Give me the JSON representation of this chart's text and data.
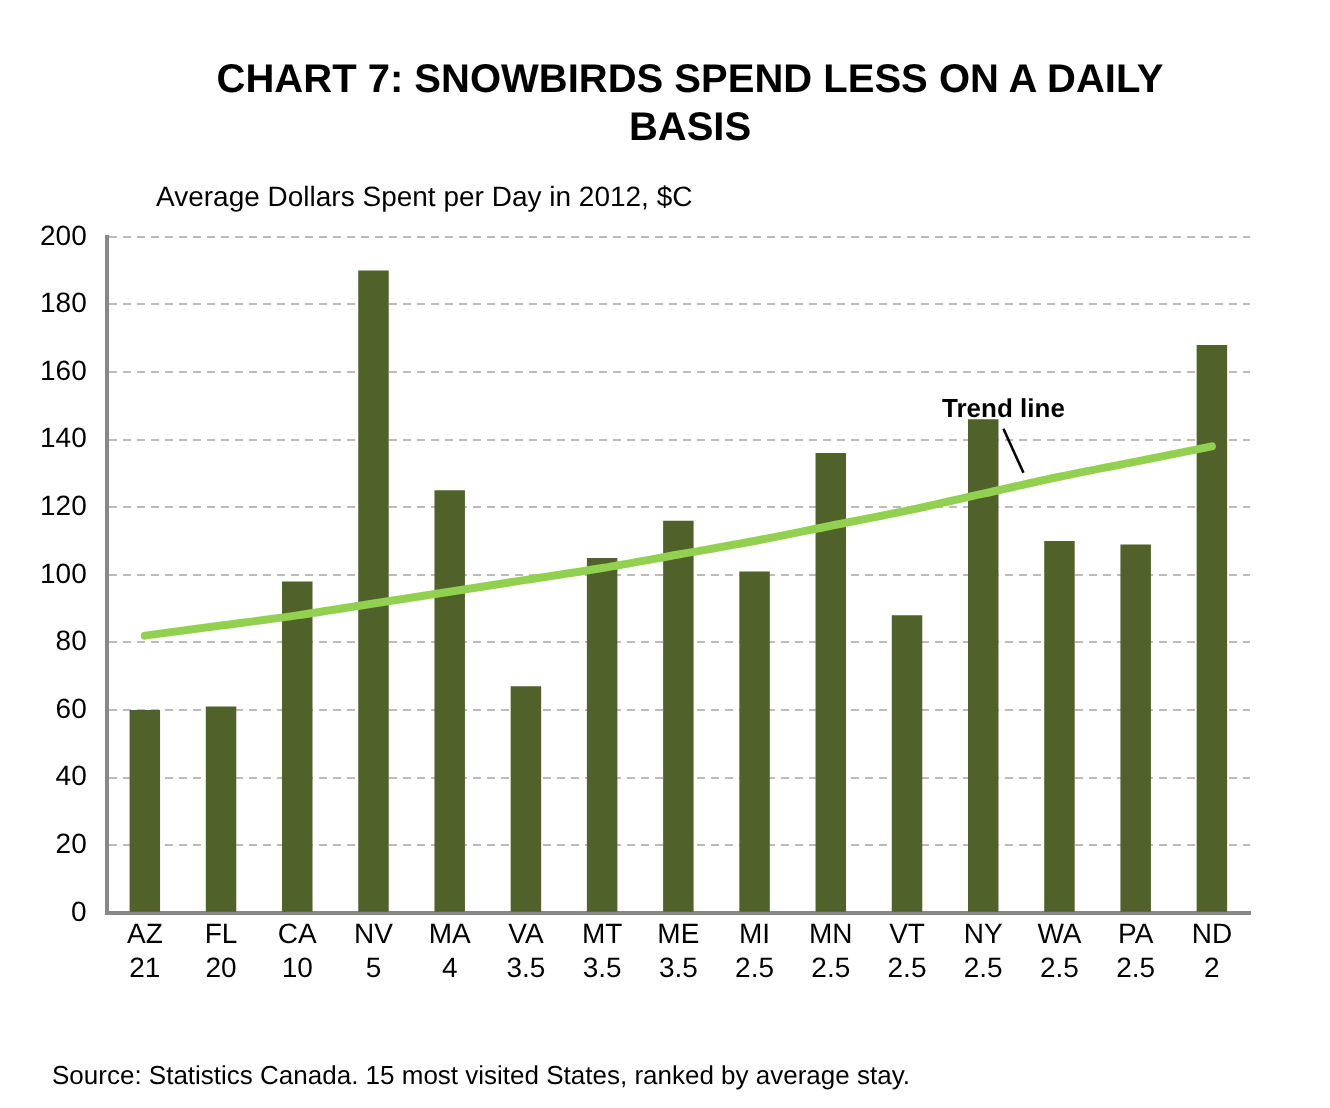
{
  "chart_data": {
    "type": "bar",
    "title": "CHART 7: SNOWBIRDS SPEND LESS ON A DAILY BASIS",
    "ylabel": "Average Dollars Spent per Day in 2012, $C",
    "categories": [
      "AZ\n21",
      "FL\n20",
      "CA\n10",
      "NV\n5",
      "MA\n4",
      "VA\n3.5",
      "MT\n3.5",
      "ME\n3.5",
      "MI\n2.5",
      "MN\n2.5",
      "VT\n2.5",
      "NY\n2.5",
      "WA\n2.5",
      "PA\n2.5",
      "ND\n2"
    ],
    "series": [
      {
        "color": "#50622a",
        "values": [
          60,
          61,
          98,
          190,
          125,
          67,
          105,
          116,
          101,
          136,
          88,
          146,
          110,
          109,
          168
        ]
      },
      {
        "type": "line",
        "color": "#92d050",
        "marker": "none",
        "x": [
          "AZ\n21",
          "FL\n20",
          "CA\n10",
          "NV\n5",
          "MA\n4",
          "VA\n3.5",
          "MT\n3.5",
          "ME\n3.5",
          "MI\n2.5",
          "MN\n2.5",
          "VT\n2.5",
          "NY\n2.5",
          "WA\n2.5",
          "PA\n2.5",
          "ND\n2"
        ],
        "values": [
          82,
          85,
          88,
          91.5,
          95,
          98.5,
          102,
          106,
          110,
          114.5,
          119,
          124,
          129,
          133.5,
          138
        ]
      }
    ],
    "ylim": [
      0,
      200
    ],
    "yticks": [
      0,
      20,
      40,
      60,
      80,
      100,
      120,
      140,
      160,
      180,
      200
    ],
    "grid": "y",
    "legend": false,
    "annotations": [
      {
        "text": "Trend line",
        "x": "WA\n2.5",
        "y": 129
      },
      "Source: Statistics Canada. 15 most visited States, ranked by average stay."
    ]
  }
}
